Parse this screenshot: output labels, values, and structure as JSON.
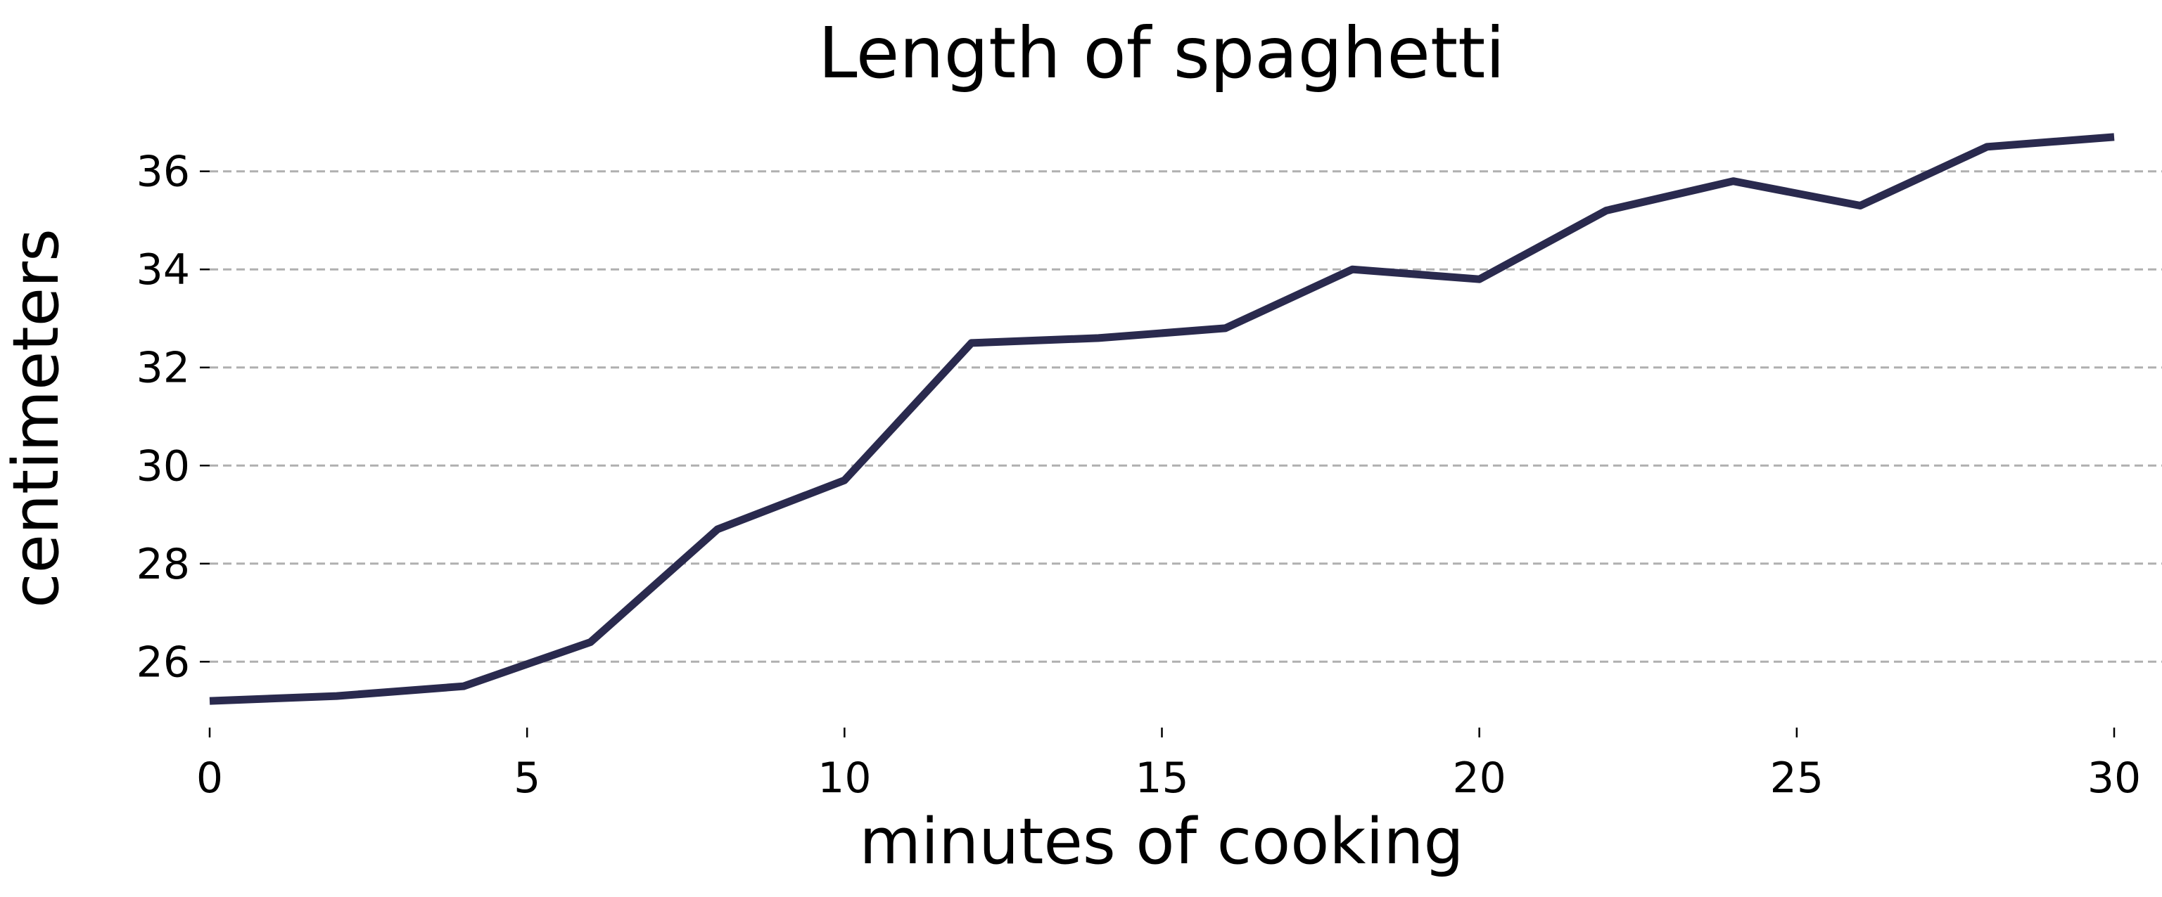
{
  "chart_data": {
    "type": "line",
    "title": "Length of spaghetti",
    "xlabel": "minutes of cooking",
    "ylabel": "centimeters",
    "xlim": [
      0,
      30
    ],
    "ylim": [
      24.8,
      37.2
    ],
    "xticks": [
      0,
      5,
      10,
      15,
      20,
      25,
      30
    ],
    "yticks": [
      26,
      28,
      30,
      32,
      34,
      36
    ],
    "grid": "horizontal-dashed",
    "legend": "none",
    "series": [
      {
        "color": "#2a2a4e",
        "x": [
          0,
          2,
          4,
          6,
          8,
          10,
          12,
          14,
          16,
          18,
          20,
          22,
          24,
          26,
          28,
          30
        ],
        "y": [
          25.2,
          25.3,
          25.5,
          26.4,
          28.7,
          29.7,
          32.5,
          32.6,
          32.8,
          34.0,
          33.8,
          35.2,
          35.8,
          35.3,
          36.5,
          36.7
        ]
      }
    ]
  }
}
